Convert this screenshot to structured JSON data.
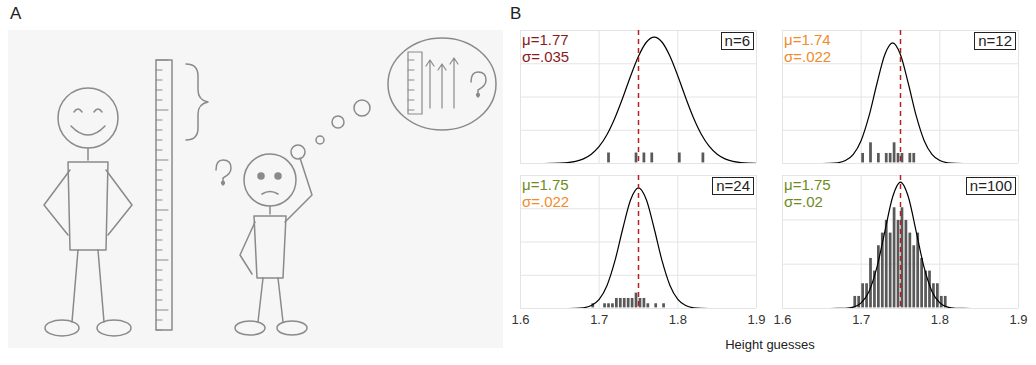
{
  "panel_labels": [
    "A",
    "B"
  ],
  "x_label": "Height guesses",
  "chart_data": [
    {
      "type": "histogram",
      "xlim": [
        1.6,
        1.9
      ],
      "xticks": [
        1.6,
        1.7,
        1.8,
        1.9
      ],
      "ylim": [
        0,
        12
      ],
      "yticks": [
        0,
        3,
        6,
        9,
        12
      ],
      "grid": true,
      "tick_labels": false,
      "bins": [
        1.7,
        1.705,
        1.71,
        1.715,
        1.72,
        1.725,
        1.73,
        1.735,
        1.74,
        1.745,
        1.75,
        1.755,
        1.76,
        1.765,
        1.77,
        1.775,
        1.78,
        1.785,
        1.79,
        1.795,
        1.8,
        1.805,
        1.81,
        1.815,
        1.82,
        1.825,
        1.83,
        1.835,
        1.84
      ],
      "values": [
        0,
        0,
        1,
        0,
        0,
        0,
        0,
        0,
        0,
        1,
        0,
        1,
        0,
        1,
        0,
        0,
        0,
        0,
        0,
        0,
        1,
        0,
        0,
        0,
        0,
        0,
        1,
        0
      ],
      "color": "#595959",
      "curve": {
        "x": [
          1.6,
          1.61,
          1.62,
          1.63,
          1.64,
          1.65,
          1.66,
          1.67,
          1.68,
          1.69,
          1.7,
          1.71,
          1.72,
          1.73,
          1.74,
          1.75,
          1.76,
          1.77,
          1.78,
          1.79,
          1.8,
          1.81,
          1.82,
          1.83,
          1.84,
          1.85,
          1.86,
          1.87,
          1.88,
          1.89,
          1.9
        ],
        "values": [
          0,
          0,
          0,
          0,
          0.01,
          0.03,
          0.08,
          0.19,
          0.42,
          0.84,
          1.54,
          2.62,
          4.11,
          5.93,
          7.9,
          9.68,
          10.94,
          11.4,
          10.94,
          9.68,
          7.9,
          5.93,
          4.11,
          2.62,
          1.54,
          0.84,
          0.42,
          0.19,
          0.08,
          0.03,
          0.01
        ],
        "color": "#000000"
      },
      "reference_line": {
        "x": 1.75,
        "color": "#b22222",
        "line_style": "dashed"
      },
      "annotations": [
        {
          "text": "μ=1.77",
          "color": "#8b1a1a"
        },
        {
          "text": "σ=.035",
          "color": "#8b1a1a"
        }
      ],
      "n_label": "n=6"
    },
    {
      "type": "histogram",
      "xlim": [
        1.6,
        1.9
      ],
      "xticks": [
        1.6,
        1.7,
        1.8,
        1.9
      ],
      "ylim": [
        0,
        20
      ],
      "yticks": [
        0,
        5,
        10,
        15,
        20
      ],
      "grid": true,
      "tick_labels": false,
      "bins": [
        1.7,
        1.705,
        1.71,
        1.715,
        1.72,
        1.725,
        1.73,
        1.735,
        1.74,
        1.745,
        1.75,
        1.755,
        1.76,
        1.765,
        1.77,
        1.775,
        1.78
      ],
      "values": [
        1.6,
        0,
        3.2,
        0,
        1.6,
        0,
        1.6,
        1.6,
        3.2,
        1.6,
        1.6,
        0,
        1.6,
        1.6,
        0,
        0
      ],
      "color": "#595959",
      "curve": {
        "x": [
          1.6,
          1.61,
          1.62,
          1.63,
          1.64,
          1.65,
          1.66,
          1.67,
          1.68,
          1.69,
          1.7,
          1.71,
          1.72,
          1.73,
          1.74,
          1.75,
          1.76,
          1.77,
          1.78,
          1.79,
          1.8,
          1.81,
          1.82,
          1.83,
          1.84,
          1.85,
          1.86,
          1.87,
          1.88,
          1.89,
          1.9
        ],
        "values": [
          0,
          0,
          0,
          0,
          0,
          0,
          0.02,
          0.11,
          0.44,
          1.37,
          3.47,
          7.15,
          11.99,
          16.35,
          18.13,
          16.35,
          11.99,
          7.15,
          3.47,
          1.37,
          0.44,
          0.11,
          0.02,
          0,
          0,
          0,
          0,
          0,
          0,
          0,
          0
        ],
        "color": "#000000"
      },
      "reference_line": {
        "x": 1.75,
        "color": "#b22222",
        "line_style": "dashed"
      },
      "annotations": [
        {
          "text": "μ=1.74",
          "color": "#f08c2c"
        },
        {
          "text": "σ=.022",
          "color": "#f08c2c"
        }
      ],
      "n_label": "n=12"
    },
    {
      "type": "histogram",
      "xlim": [
        1.6,
        1.9
      ],
      "xticks": [
        1.6,
        1.7,
        1.8,
        1.9
      ],
      "ylim": [
        0,
        20
      ],
      "yticks": [
        0,
        5,
        10,
        15,
        20
      ],
      "grid": true,
      "tick_labels": "x",
      "bins": [
        1.69,
        1.695,
        1.7,
        1.705,
        1.71,
        1.715,
        1.72,
        1.725,
        1.73,
        1.735,
        1.74,
        1.745,
        1.75,
        1.755,
        1.76,
        1.765,
        1.77,
        1.775,
        1.78,
        1.785,
        1.79
      ],
      "values": [
        0.8,
        0,
        0,
        0.8,
        0.8,
        0.8,
        1.6,
        1.6,
        1.6,
        1.6,
        1.6,
        2.4,
        1.6,
        1.6,
        0.8,
        0,
        0.8,
        0,
        0.8,
        0
      ],
      "color": "#595959",
      "curve": {
        "x": [
          1.6,
          1.61,
          1.62,
          1.63,
          1.64,
          1.65,
          1.66,
          1.67,
          1.68,
          1.69,
          1.7,
          1.71,
          1.72,
          1.73,
          1.74,
          1.75,
          1.76,
          1.77,
          1.78,
          1.79,
          1.8,
          1.81,
          1.82,
          1.83,
          1.84,
          1.85,
          1.86,
          1.87,
          1.88,
          1.89,
          1.9
        ],
        "values": [
          0,
          0,
          0,
          0,
          0,
          0,
          0,
          0.02,
          0.11,
          0.44,
          1.37,
          3.47,
          7.15,
          11.99,
          16.35,
          18.13,
          16.35,
          11.99,
          7.15,
          3.47,
          1.37,
          0.44,
          0.11,
          0.02,
          0,
          0,
          0,
          0,
          0,
          0,
          0
        ],
        "color": "#000000"
      },
      "reference_line": {
        "x": 1.75,
        "color": "#b22222",
        "line_style": "dashed"
      },
      "annotations": [
        {
          "text": "μ=1.75",
          "color": "#6e8b1e"
        },
        {
          "text": "σ=.022",
          "color": "#f08c2c"
        }
      ],
      "n_label": "n=24"
    },
    {
      "type": "histogram",
      "xlim": [
        1.6,
        1.9
      ],
      "xticks": [
        1.6,
        1.7,
        1.8,
        1.9
      ],
      "ylim": [
        0,
        21
      ],
      "yticks": [
        0,
        7,
        14,
        21
      ],
      "grid": true,
      "tick_labels": "x",
      "bins": [
        1.69,
        1.695,
        1.7,
        1.705,
        1.71,
        1.715,
        1.72,
        1.725,
        1.73,
        1.735,
        1.74,
        1.745,
        1.75,
        1.755,
        1.76,
        1.765,
        1.77,
        1.775,
        1.78,
        1.785,
        1.79,
        1.795,
        1.8,
        1.805,
        1.81
      ],
      "values": [
        2,
        2,
        4,
        4,
        8,
        6,
        10,
        12,
        14,
        12,
        16,
        14,
        16,
        14,
        12,
        10,
        12,
        8,
        6,
        6,
        4,
        4,
        2,
        2
      ],
      "color": "#595959",
      "curve": {
        "x": [
          1.6,
          1.61,
          1.62,
          1.63,
          1.64,
          1.65,
          1.66,
          1.67,
          1.68,
          1.69,
          1.7,
          1.71,
          1.72,
          1.73,
          1.74,
          1.75,
          1.76,
          1.77,
          1.78,
          1.79,
          1.8,
          1.81,
          1.82,
          1.83,
          1.84,
          1.85,
          1.86,
          1.87,
          1.88,
          1.89,
          1.9
        ],
        "values": [
          0,
          0,
          0,
          0,
          0,
          0,
          0,
          0.01,
          0.04,
          0.22,
          0.88,
          2.7,
          6.48,
          12.1,
          17.61,
          19.95,
          17.61,
          12.1,
          6.48,
          2.7,
          0.88,
          0.22,
          0.04,
          0.01,
          0,
          0,
          0,
          0,
          0,
          0,
          0
        ],
        "color": "#000000"
      },
      "reference_line": {
        "x": 1.75,
        "color": "#b22222",
        "line_style": "dashed"
      },
      "annotations": [
        {
          "text": "μ=1.75",
          "color": "#6e8b1e"
        },
        {
          "text": "σ=.02",
          "color": "#6e8b1e"
        }
      ],
      "n_label": "n=100"
    }
  ]
}
